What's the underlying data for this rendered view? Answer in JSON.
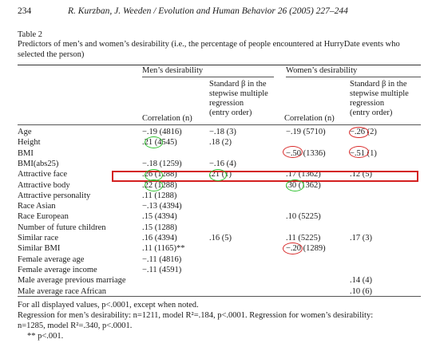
{
  "header": {
    "page_number": "234",
    "citation": "R. Kurzban, J. Weeden / Evolution and Human Behavior 26 (2005) 227–244"
  },
  "table": {
    "label": "Table 2",
    "caption_line1": "Predictors of men’s and women’s desirability (i.e., the percentage of people encountered at HurryDate events who",
    "caption_line2": "selected the person)",
    "group_men": "Men’s desirability",
    "group_women": "Women’s desirability",
    "col_correlation": "Correlation (n)",
    "col_beta_l1": "Standard β in the",
    "col_beta_l2": "stepwise multiple",
    "col_beta_l3": "regression",
    "col_beta_l4": "(entry order)",
    "rows": [
      {
        "label": "Age",
        "men_corr": "−.19 (4816)",
        "men_beta": "−.18 (3)",
        "women_corr": "−.19 (5710)",
        "women_beta": "−.26 (2)"
      },
      {
        "label": "Height",
        "men_corr": ".21 (4545)",
        "men_beta": ".18 (2)",
        "women_corr": "",
        "women_beta": ""
      },
      {
        "label": "BMI",
        "men_corr": "",
        "men_beta": "",
        "women_corr": "−.50 (1336)",
        "women_beta": "−.51 (1)"
      },
      {
        "label": "BMI(abs25)",
        "men_corr": "−.18 (1259)",
        "men_beta": "−.16 (4)",
        "women_corr": "",
        "women_beta": ""
      },
      {
        "label": "Attractive face",
        "men_corr": ".26 (1288)",
        "men_beta": ".21 (1)",
        "women_corr": ".17 (1362)",
        "women_beta": ".12 (5)"
      },
      {
        "label": "Attractive body",
        "men_corr": ".22 (1288)",
        "men_beta": "",
        "women_corr": ".30 (1362)",
        "women_beta": ""
      },
      {
        "label": "Attractive personality",
        "men_corr": ".11 (1288)",
        "men_beta": "",
        "women_corr": "",
        "women_beta": ""
      },
      {
        "label": "Race Asian",
        "men_corr": "−.13 (4394)",
        "men_beta": "",
        "women_corr": "",
        "women_beta": ""
      },
      {
        "label": "Race European",
        "men_corr": ".15 (4394)",
        "men_beta": "",
        "women_corr": ".10 (5225)",
        "women_beta": ""
      },
      {
        "label": "Number of future children",
        "men_corr": ".15 (1288)",
        "men_beta": "",
        "women_corr": "",
        "women_beta": ""
      },
      {
        "label": "Similar race",
        "men_corr": ".16 (4394)",
        "men_beta": ".16 (5)",
        "women_corr": ".11 (5225)",
        "women_beta": ".17 (3)"
      },
      {
        "label": "Similar BMI",
        "men_corr": ".11 (1165)**",
        "men_beta": "",
        "women_corr": "−.20 (1289)",
        "women_beta": ""
      },
      {
        "label": "Female average age",
        "men_corr": "−.11 (4816)",
        "men_beta": "",
        "women_corr": "",
        "women_beta": ""
      },
      {
        "label": "Female average income",
        "men_corr": "−.11 (4591)",
        "men_beta": "",
        "women_corr": "",
        "women_beta": ""
      },
      {
        "label": "Male average previous marriage",
        "men_corr": "",
        "men_beta": "",
        "women_corr": "",
        "women_beta": ".14 (4)"
      },
      {
        "label": "Male average race African",
        "men_corr": "",
        "men_beta": "",
        "women_corr": "",
        "women_beta": ".10 (6)"
      }
    ],
    "footnote1": "For all displayed values, p<.0001, except when noted.",
    "footnote2": "Regression for men’s desirability: n=1211, model R²=.184, p<.0001. Regression for women’s desirability:",
    "footnote3": "n=1285, model R²=.340, p<.0001.",
    "footnote4": "** p<.001.",
    "annotation_colors": {
      "highlight": "#d42020",
      "red_circle": "#d82a2a",
      "green_circle": "#2ec02e"
    }
  }
}
